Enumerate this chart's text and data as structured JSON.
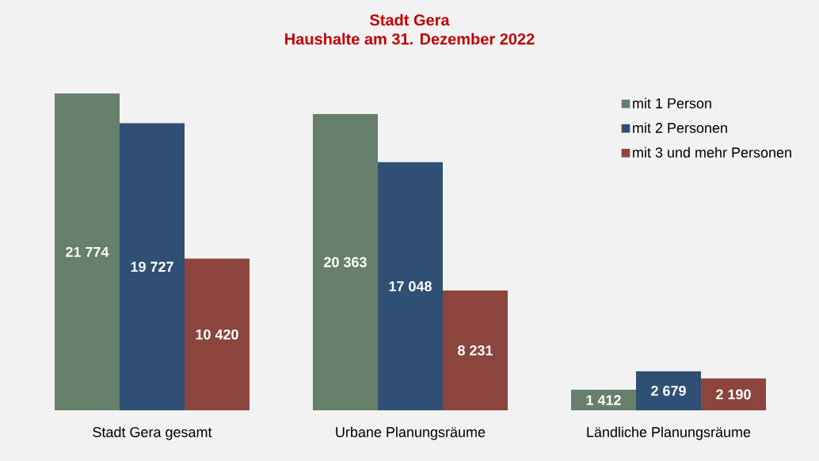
{
  "chart_data": {
    "type": "bar",
    "title": "Stadt Gera",
    "subtitle": "Haushalte am 31. Dezember 2022",
    "categories": [
      "Stadt Gera gesamt",
      "Urbane Planungsräume",
      "Ländliche Planungsräume"
    ],
    "series": [
      {
        "name": "mit 1 Person",
        "color": "#66806b",
        "values": [
          21774,
          20363,
          1412
        ],
        "value_labels": [
          "21 774",
          "20 363",
          "1 412"
        ]
      },
      {
        "name": "mit 2 Personen",
        "color": "#2f4f75",
        "values": [
          19727,
          17048,
          2679
        ],
        "value_labels": [
          "19 727",
          "17 048",
          "2 679"
        ]
      },
      {
        "name": "mit 3 und mehr Personen",
        "color": "#8b453c",
        "values": [
          10420,
          8231,
          2190
        ],
        "value_labels": [
          "10 420",
          "8 231",
          "2 190"
        ]
      }
    ],
    "legend": "top right"
  }
}
